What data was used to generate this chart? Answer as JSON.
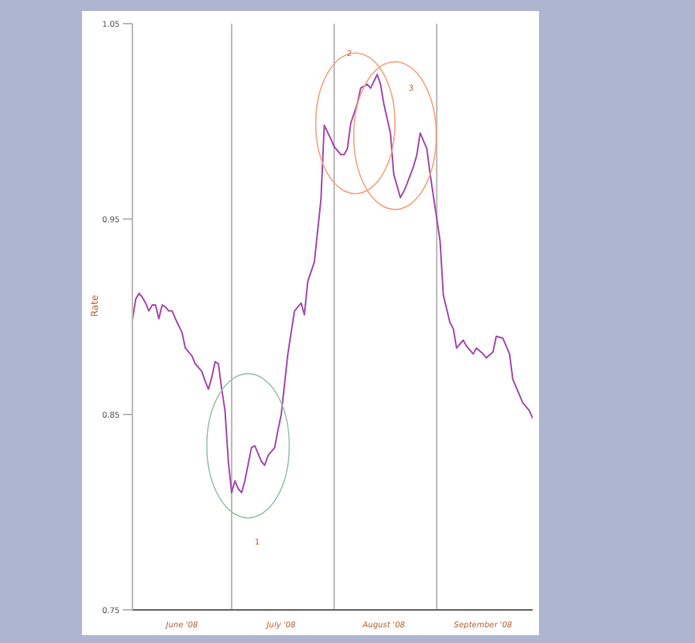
{
  "chart_data": {
    "type": "line",
    "ylabel": "Rate",
    "xlim": [
      "2008-06-01",
      "2008-09-30"
    ],
    "ylim": [
      0.75,
      1.05
    ],
    "yticks": [
      0.75,
      0.85,
      0.95,
      1.05
    ],
    "xticks": [
      {
        "value": "2008-06-16",
        "label": "June '08"
      },
      {
        "value": "2008-07-16",
        "label": "July '08"
      },
      {
        "value": "2008-08-16",
        "label": "August '08"
      },
      {
        "value": "2008-09-15",
        "label": "September '08"
      }
    ],
    "grid": false,
    "legend": false,
    "marker": "none",
    "line_style": "solid",
    "ref_lines": [
      {
        "axis": "x",
        "value": "2008-07-01",
        "color": "#bbbbbb"
      },
      {
        "axis": "x",
        "value": "2008-08-01",
        "color": "#bbbbbb"
      },
      {
        "axis": "x",
        "value": "2008-09-01",
        "color": "#bbbbbb"
      }
    ],
    "annotations": [
      "1",
      "2",
      "3"
    ],
    "x": [
      "2008-06-01",
      "2008-06-02",
      "2008-06-03",
      "2008-06-04",
      "2008-06-05",
      "2008-06-06",
      "2008-06-07",
      "2008-06-08",
      "2008-06-09",
      "2008-06-10",
      "2008-06-11",
      "2008-06-12",
      "2008-06-13",
      "2008-06-14",
      "2008-06-16",
      "2008-06-17",
      "2008-06-19",
      "2008-06-20",
      "2008-06-22",
      "2008-06-23",
      "2008-06-24",
      "2008-06-25",
      "2008-06-26",
      "2008-06-27",
      "2008-06-28",
      "2008-06-29",
      "2008-06-30",
      "2008-07-01",
      "2008-07-02",
      "2008-07-03",
      "2008-07-04",
      "2008-07-05",
      "2008-07-07",
      "2008-07-08",
      "2008-07-10",
      "2008-07-11",
      "2008-07-12",
      "2008-07-14",
      "2008-07-15",
      "2008-07-16",
      "2008-07-18",
      "2008-07-20",
      "2008-07-22",
      "2008-07-23",
      "2008-07-24",
      "2008-07-26",
      "2008-07-27",
      "2008-07-28",
      "2008-07-29",
      "2008-07-31",
      "2008-08-01",
      "2008-08-03",
      "2008-08-04",
      "2008-08-05",
      "2008-08-06",
      "2008-08-08",
      "2008-08-09",
      "2008-08-11",
      "2008-08-12",
      "2008-08-14",
      "2008-08-15",
      "2008-08-16",
      "2008-08-18",
      "2008-08-19",
      "2008-08-21",
      "2008-08-22",
      "2008-08-23",
      "2008-08-25",
      "2008-08-26",
      "2008-08-27",
      "2008-08-29",
      "2008-08-30",
      "2008-09-02",
      "2008-09-03",
      "2008-09-05",
      "2008-09-06",
      "2008-09-07",
      "2008-09-09",
      "2008-09-10",
      "2008-09-12",
      "2008-09-13",
      "2008-09-15",
      "2008-09-16",
      "2008-09-18",
      "2008-09-19",
      "2008-09-21",
      "2008-09-23",
      "2008-09-24",
      "2008-09-26",
      "2008-09-27",
      "2008-09-29",
      "2008-09-30"
    ],
    "series": [
      {
        "color": "#a64cb0",
        "values": [
          0.898,
          0.909,
          0.912,
          0.91,
          0.907,
          0.903,
          0.906,
          0.906,
          0.899,
          0.906,
          0.905,
          0.903,
          0.903,
          0.899,
          0.892,
          0.884,
          0.88,
          0.876,
          0.872,
          0.867,
          0.863,
          0.869,
          0.877,
          0.876,
          0.863,
          0.852,
          0.826,
          0.81,
          0.816,
          0.812,
          0.81,
          0.816,
          0.833,
          0.834,
          0.826,
          0.824,
          0.829,
          0.833,
          0.842,
          0.85,
          0.881,
          0.903,
          0.907,
          0.901,
          0.918,
          0.928,
          0.944,
          0.96,
          0.998,
          0.991,
          0.987,
          0.983,
          0.983,
          0.986,
          0.999,
          1.009,
          1.017,
          1.019,
          1.017,
          1.024,
          1.019,
          1.009,
          0.994,
          0.973,
          0.961,
          0.964,
          0.968,
          0.977,
          0.983,
          0.994,
          0.986,
          0.973,
          0.939,
          0.911,
          0.897,
          0.894,
          0.884,
          0.888,
          0.885,
          0.881,
          0.884,
          0.881,
          0.879,
          0.882,
          0.89,
          0.889,
          0.881,
          0.868,
          0.86,
          0.856,
          0.852,
          0.848
        ]
      }
    ]
  }
}
